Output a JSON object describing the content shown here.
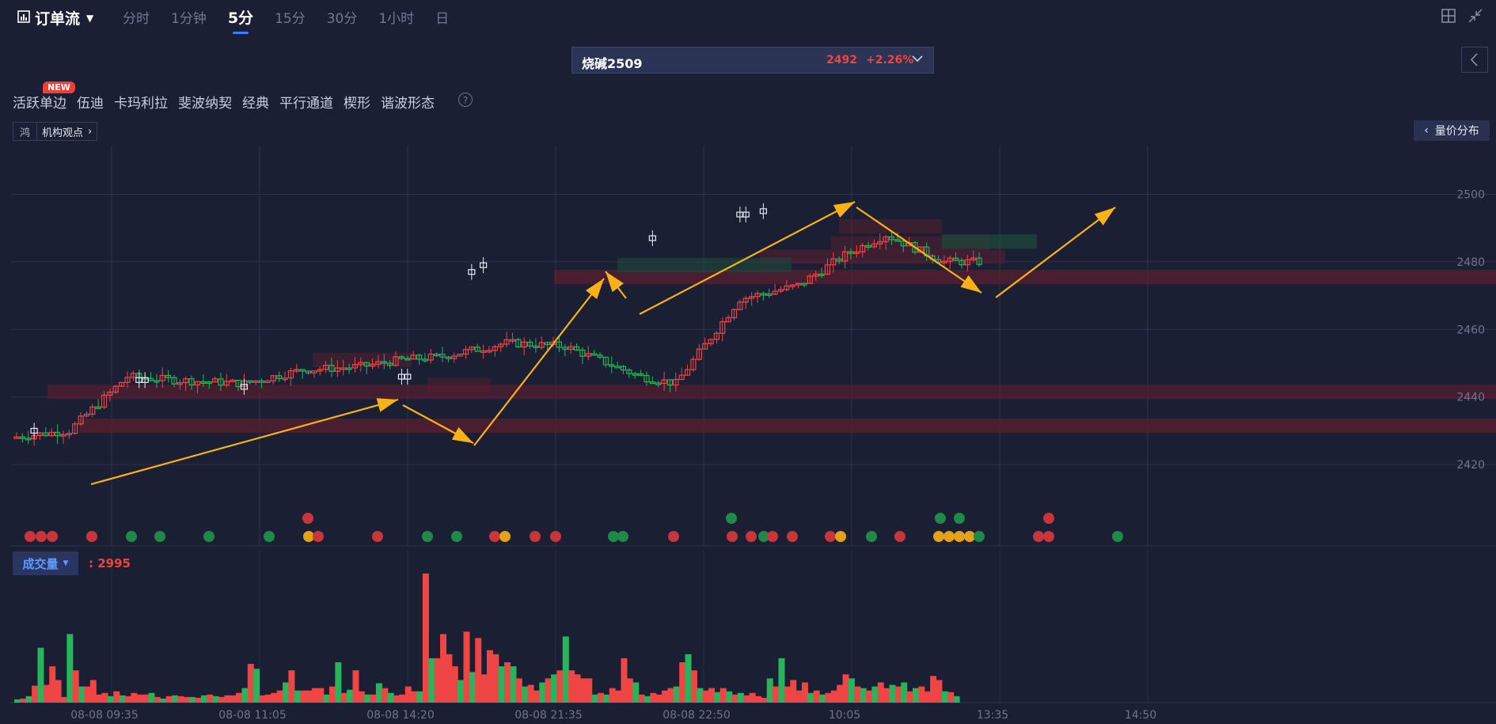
{
  "header": {
    "app_title": "订单流",
    "periods": [
      "分时",
      "1分钟",
      "5分",
      "15分",
      "30分",
      "1小时",
      "日"
    ],
    "active_period": "5分"
  },
  "symbol": {
    "name": "烧碱2509",
    "price": "2492",
    "change": "+2.26%"
  },
  "tools": {
    "items": [
      "活跃单边",
      "伍迪",
      "卡玛利拉",
      "斐波纳契",
      "经典",
      "平行通道",
      "楔形",
      "谐波形态"
    ],
    "new_badge": "NEW",
    "help": "?"
  },
  "institution_tag": {
    "prefix": "鸿",
    "label": "机构观点"
  },
  "volume_dist_button": "量价分布",
  "volume_panel": {
    "label": "成交量",
    "value": ": 2995"
  },
  "colors": {
    "up": "#ef4545",
    "down": "#27b45a",
    "arrow": "#f8b117",
    "background": "#1b1f33"
  },
  "chart_data": {
    "type": "candlestick",
    "yaxis": {
      "ticks": [
        2500,
        2480,
        2460,
        2440,
        2420
      ],
      "range": [
        2416,
        2506
      ]
    },
    "xaxis": {
      "ticks": [
        "08-08 09:35",
        "08-08 11:05",
        "08-08 14:20",
        "08-08 21:35",
        "08-08 22:50",
        "10:05",
        "13:35",
        "14:50"
      ]
    },
    "price_path": [
      [
        0,
        2428
      ],
      [
        10,
        2430
      ],
      [
        20,
        2446
      ],
      [
        28,
        2445
      ],
      [
        40,
        2444
      ],
      [
        50,
        2448
      ],
      [
        60,
        2449
      ],
      [
        67,
        2451
      ],
      [
        74,
        2452
      ],
      [
        85,
        2456
      ],
      [
        95,
        2455
      ],
      [
        108,
        2446
      ],
      [
        114,
        2444
      ],
      [
        125,
        2469
      ],
      [
        135,
        2473
      ],
      [
        143,
        2482
      ],
      [
        150,
        2488
      ],
      [
        160,
        2480
      ],
      [
        172,
        2480
      ],
      [
        182,
        2486
      ],
      [
        197,
        2490
      ],
      [
        210,
        2489
      ],
      [
        225,
        2496
      ],
      [
        231,
        2502
      ],
      [
        240,
        2497
      ],
      [
        258,
        2493
      ],
      [
        265,
        2483
      ],
      [
        272,
        2478
      ],
      [
        283,
        2484
      ],
      [
        298,
        2487
      ],
      [
        308,
        2494
      ],
      [
        320,
        2493
      ],
      [
        332,
        2492
      ]
    ],
    "volume": [
      4,
      5,
      8,
      21,
      68,
      22,
      45,
      28,
      7,
      85,
      40,
      20,
      20,
      28,
      10,
      12,
      8,
      14,
      9,
      8,
      12,
      10,
      10,
      12,
      7,
      5,
      8,
      9,
      8,
      7,
      7,
      6,
      9,
      10,
      8,
      7,
      9,
      9,
      12,
      18,
      48,
      42,
      9,
      10,
      12,
      15,
      25,
      40,
      15,
      15,
      15,
      18,
      18,
      10,
      20,
      50,
      12,
      16,
      40,
      14,
      10,
      10,
      24,
      18,
      12,
      9,
      10,
      20,
      14,
      14,
      160,
      55,
      55,
      85,
      60,
      45,
      28,
      88,
      38,
      80,
      35,
      65,
      60,
      45,
      50,
      45,
      30,
      20,
      22,
      15,
      25,
      30,
      35,
      40,
      82,
      40,
      35,
      30,
      30,
      10,
      12,
      10,
      18,
      15,
      55,
      30,
      25,
      10,
      8,
      12,
      10,
      15,
      18,
      20,
      50,
      60,
      40,
      18,
      15,
      18,
      13,
      18,
      14,
      10,
      12,
      9,
      12,
      8,
      6,
      30,
      20,
      55,
      20,
      28,
      15,
      25,
      12,
      15,
      10,
      12,
      15,
      22,
      35,
      30,
      20,
      18,
      15,
      20,
      25,
      18,
      22,
      20,
      25,
      14,
      18,
      20,
      14,
      33,
      28,
      14,
      13,
      8
    ]
  }
}
